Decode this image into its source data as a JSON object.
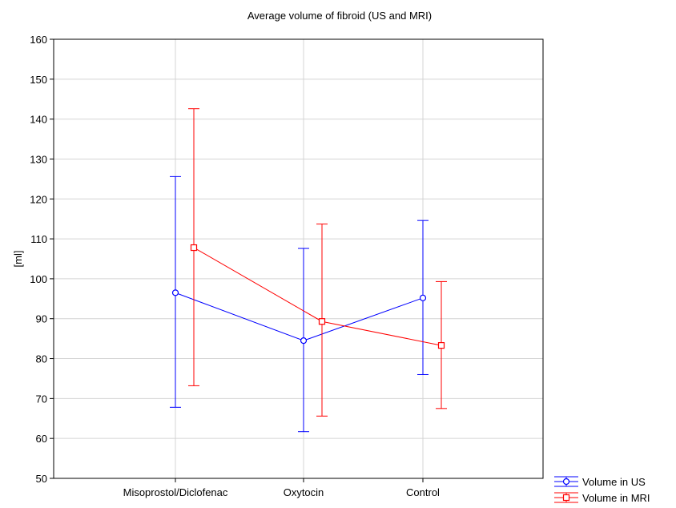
{
  "chart_data": {
    "type": "line",
    "title": "Average volume of fibroid (US and MRI)",
    "ylabel": "[ml]",
    "xlabel": "",
    "categories": [
      "Misoprostol/Diclofenac",
      "Oxytocin",
      "Control"
    ],
    "ylim": [
      50,
      160
    ],
    "yticks": [
      50,
      60,
      70,
      80,
      90,
      100,
      110,
      120,
      130,
      140,
      150,
      160
    ],
    "grid": true,
    "legend_position": "bottom-right",
    "series": [
      {
        "name": "Volume in US",
        "color": "#0000ff",
        "marker": "circle",
        "values": [
          96.5,
          84.5,
          95.2
        ],
        "lower": [
          67.8,
          61.7,
          76.0
        ],
        "upper": [
          125.6,
          107.6,
          114.6
        ]
      },
      {
        "name": "Volume in MRI",
        "color": "#ff0000",
        "marker": "square",
        "values": [
          107.8,
          89.3,
          83.3
        ],
        "lower": [
          73.2,
          65.6,
          67.5
        ],
        "upper": [
          142.6,
          113.7,
          99.3
        ]
      }
    ]
  }
}
